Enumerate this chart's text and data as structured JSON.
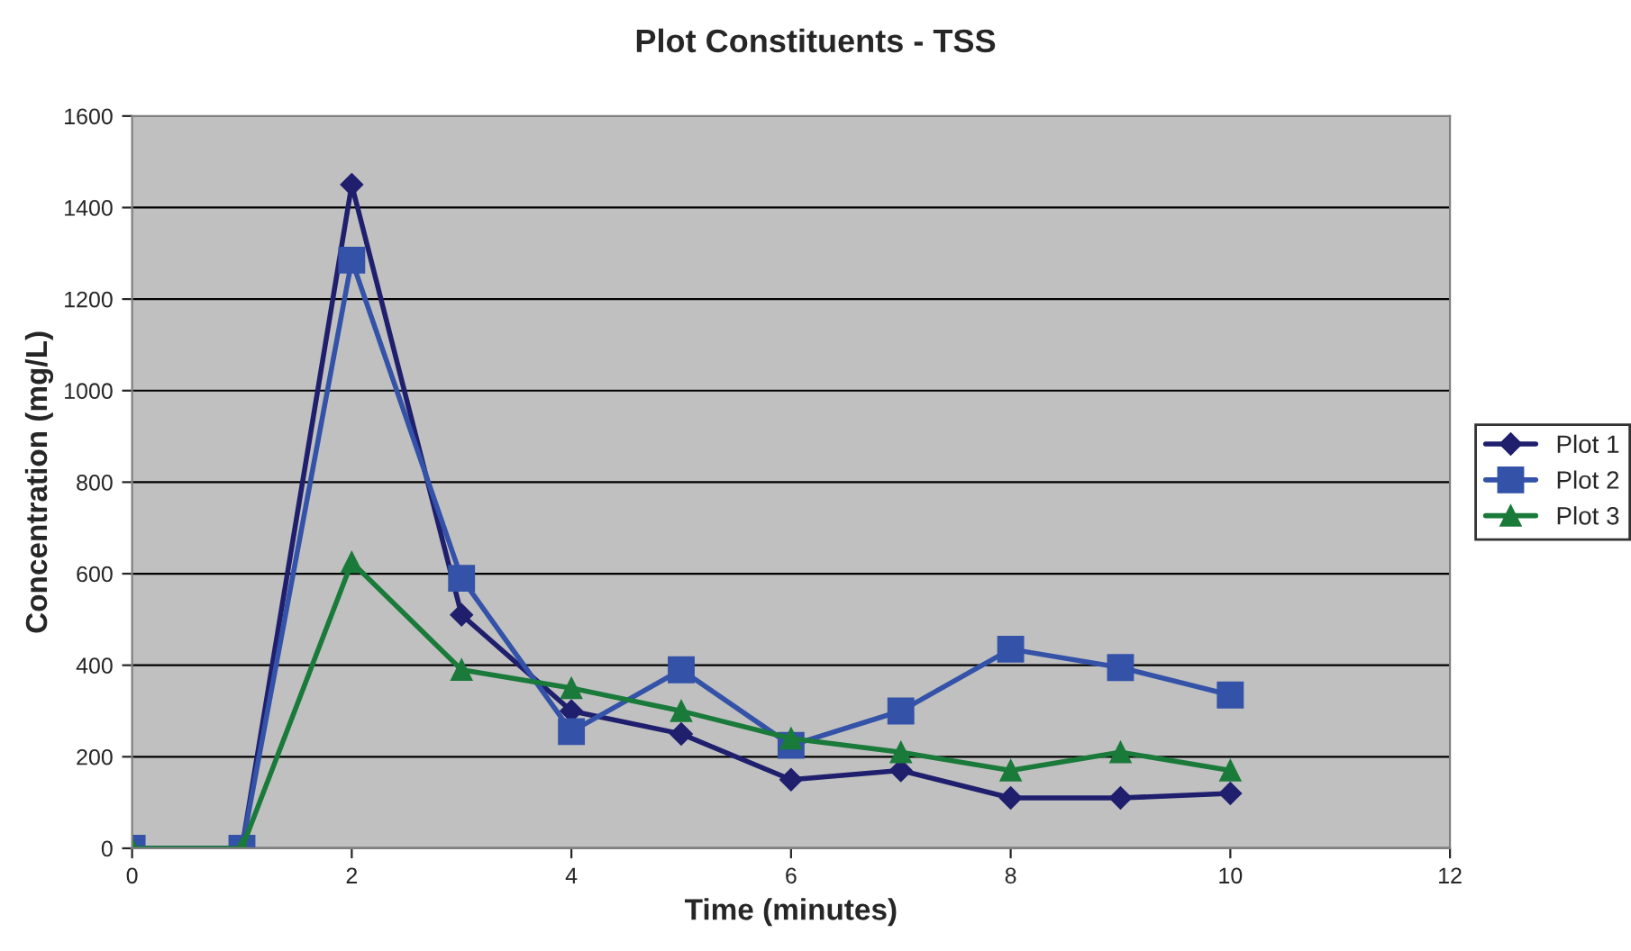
{
  "chart_data": {
    "type": "line",
    "title": "Plot Constituents - TSS",
    "xlabel": "Time (minutes)",
    "ylabel": "Concentration (mg/L)",
    "x": [
      0,
      1,
      2,
      3,
      4,
      5,
      6,
      7,
      8,
      9,
      10
    ],
    "series": [
      {
        "name": "Plot 1",
        "color": "#1f1f6e",
        "marker": "diamond",
        "values": [
          0,
          0,
          1450,
          510,
          300,
          250,
          150,
          170,
          110,
          110,
          120
        ]
      },
      {
        "name": "Plot 2",
        "color": "#3352a8",
        "marker": "square",
        "values": [
          0,
          0,
          1285,
          590,
          255,
          390,
          225,
          300,
          435,
          395,
          335
        ]
      },
      {
        "name": "Plot 3",
        "color": "#1a7a3a",
        "marker": "triangle",
        "values": [
          0,
          0,
          625,
          390,
          350,
          300,
          240,
          210,
          170,
          210,
          170
        ]
      }
    ],
    "xlim": [
      0,
      12
    ],
    "xticks": [
      0,
      2,
      4,
      6,
      8,
      10,
      12
    ],
    "ylim": [
      0,
      1600
    ],
    "yticks": [
      0,
      200,
      400,
      600,
      800,
      1000,
      1200,
      1400,
      1600
    ],
    "grid": "y",
    "legend": "right",
    "line_style": "solid"
  }
}
